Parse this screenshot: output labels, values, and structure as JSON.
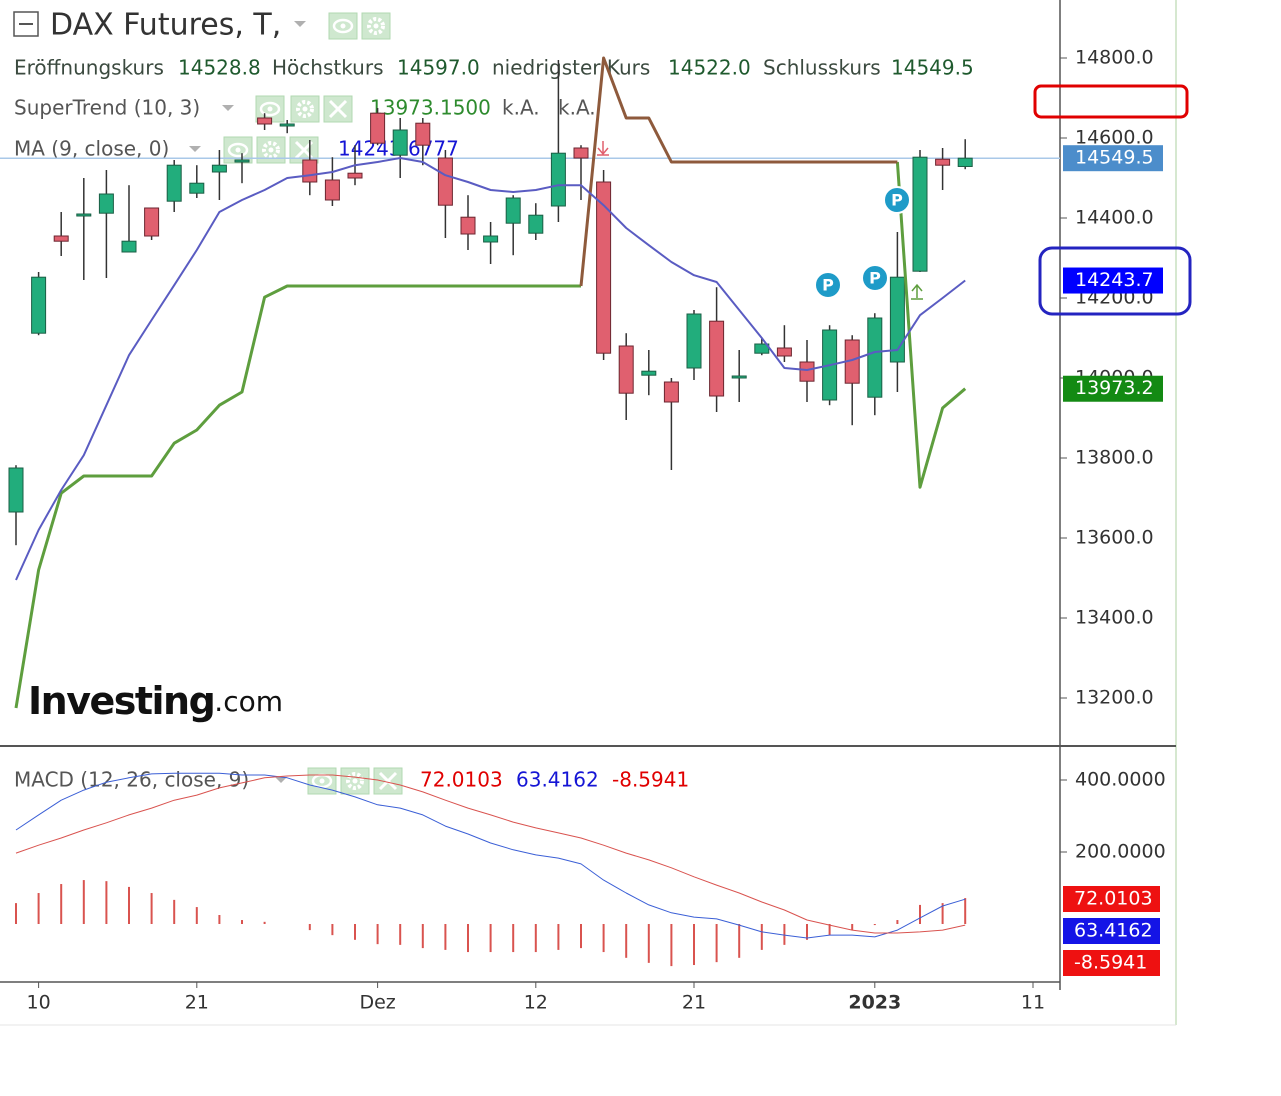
{
  "title": "DAX Futures, T,",
  "ohlc_legend": [
    {
      "label": "Eröffnungskurs",
      "value": "14528.8"
    },
    {
      "label": "Höchstkurs",
      "value": "14597.0"
    },
    {
      "label": "niedrigster Kurs",
      "value": "14522.0"
    },
    {
      "label": "Schlusskurs",
      "value": "14549.5"
    }
  ],
  "watermark": {
    "brand": "Investing",
    "suffix": ".com"
  },
  "chart_data": [
    {
      "type": "candlestick",
      "categories": [
        null,
        "10",
        null,
        null,
        null,
        null,
        null,
        null,
        "21",
        null,
        null,
        null,
        null,
        null,
        null,
        null,
        "Dez",
        null,
        null,
        null,
        null,
        null,
        null,
        "12",
        null,
        null,
        null,
        null,
        null,
        null,
        "21",
        null,
        null,
        null,
        null,
        null,
        null,
        null,
        "2023",
        null,
        null,
        null,
        null,
        null,
        null,
        "11"
      ],
      "open": [
        13665,
        14112,
        14355,
        14405,
        14412,
        14315,
        14425,
        14442,
        14462,
        14515,
        14540,
        14650,
        14630,
        14545,
        14495,
        14512,
        14662,
        14557,
        14637,
        14550,
        14402,
        14340,
        14387,
        14362,
        14430,
        14575,
        14490,
        14080,
        14007,
        13990,
        14025,
        14142,
        14000,
        14062,
        14075,
        14040,
        13945,
        14095,
        13952,
        14040,
        14267,
        14547,
        14528.8,
        null,
        null,
        null
      ],
      "high": [
        13782,
        14265,
        14415,
        14500,
        14520,
        14482,
        14425,
        14545,
        14532,
        14570,
        14562,
        14662,
        14645,
        14595,
        14552,
        14582,
        14675,
        14650,
        14650,
        14570,
        14457,
        14390,
        14457,
        14437,
        14795,
        14582,
        14520,
        14112,
        14070,
        14000,
        14170,
        14227,
        14070,
        14100,
        14132,
        14095,
        14132,
        14107,
        14162,
        14365,
        14570,
        14575,
        14597,
        null,
        null,
        null
      ],
      "low": [
        13582,
        14107,
        14305,
        14245,
        14250,
        14315,
        14345,
        14415,
        14450,
        14445,
        14487,
        14620,
        14612,
        14457,
        14430,
        14482,
        14582,
        14500,
        14532,
        14350,
        14320,
        14285,
        14307,
        14345,
        14390,
        14445,
        14045,
        13895,
        13957,
        13770,
        13995,
        13915,
        13940,
        14057,
        14040,
        13940,
        13932,
        13882,
        13907,
        13965,
        14265,
        14470,
        14522,
        null,
        null,
        null
      ],
      "close": [
        13775,
        14252,
        14342,
        14410,
        14460,
        14342,
        14355,
        14532,
        14487,
        14532,
        14545,
        14635,
        14635,
        14490,
        14445,
        14500,
        14587,
        14620,
        14582,
        14432,
        14360,
        14355,
        14450,
        14407,
        14562,
        14550,
        14062,
        13962,
        14017,
        13940,
        14160,
        13955,
        14005,
        14085,
        14055,
        13992,
        14120,
        13987,
        14150,
        14252,
        14552,
        14532,
        14549.5,
        null,
        null,
        null
      ],
      "up_color": "#22ad7c",
      "down_color": "#e0606f",
      "ylim": [
        13082.5,
        14945
      ],
      "yticks": [
        {
          "value": 13200,
          "label": "13200.0"
        },
        {
          "value": 13400,
          "label": "13400.0"
        },
        {
          "value": 13600,
          "label": "13600.0"
        },
        {
          "value": 13800,
          "label": "13800.0"
        },
        {
          "value": 14000,
          "label": "14000.0"
        },
        {
          "value": 14200,
          "label": "14200.0"
        },
        {
          "value": 14400,
          "label": "14400.0"
        },
        {
          "value": 14600,
          "label": "14600.0"
        },
        {
          "value": 14800,
          "label": "14800.0"
        }
      ],
      "last_price_line": true,
      "indicators": [
        {
          "label": "SuperTrend (10, 3)",
          "value_labels": [
            "13973.1500",
            "k.A.",
            "k.A."
          ],
          "value_colors": [
            "#2e8b2e",
            "#555555",
            "#555555"
          ],
          "series": [
            {
              "color": "#5e9e3e",
              "values": [
                13175,
                13520,
                13712,
                13755,
                13755,
                13755,
                13755,
                13837,
                13870,
                13932,
                13965,
                14202,
                14230,
                14230,
                14230,
                14230,
                14230,
                14230,
                14230,
                14230,
                14230,
                14230,
                14230,
                14230,
                14230,
                14230,
                null,
                null,
                null,
                null,
                null,
                null,
                null,
                null,
                null,
                null,
                null,
                null,
                null,
                14540,
                13727,
                13925,
                13973.15,
                null,
                null,
                null
              ]
            },
            {
              "color": "#8e5a3c",
              "values": [
                null,
                null,
                null,
                null,
                null,
                null,
                null,
                null,
                null,
                null,
                null,
                null,
                null,
                null,
                null,
                null,
                null,
                null,
                null,
                null,
                null,
                null,
                null,
                null,
                null,
                14230,
                14800,
                14650,
                14650,
                14540,
                14540,
                14540,
                14540,
                14540,
                14540,
                14540,
                14540,
                14540,
                14540,
                14540,
                null,
                null,
                null,
                null,
                null,
                null
              ]
            }
          ]
        },
        {
          "label": "MA (9, close, 0)",
          "value_labels": [
            "14243.6777"
          ],
          "value_colors": [
            "#1515d5"
          ],
          "series": [
            {
              "color": "#5a5cc2",
              "values": [
                13495,
                13620,
                13720,
                13807,
                13932,
                14057,
                14145,
                14232,
                14320,
                14415,
                14445,
                14470,
                14500,
                14507,
                14515,
                14532,
                14540,
                14550,
                14540,
                14507,
                14490,
                14470,
                14465,
                14470,
                14482,
                14482,
                14432,
                14375,
                14332,
                14290,
                14257,
                14240,
                14170,
                14100,
                14025,
                14020,
                14032,
                14045,
                14065,
                14070,
                14157,
                14200,
                14243.6777,
                null,
                null,
                null
              ]
            }
          ]
        }
      ],
      "markers": [
        {
          "label": "P"
        },
        {
          "label": "P"
        },
        {
          "label": "P"
        }
      ],
      "price_badges": [
        {
          "value": 14549.5,
          "label": "14549.5",
          "color": "#4c8dcb"
        },
        {
          "value": 14243.6777,
          "label": "14243.7",
          "color": "#0000ff"
        },
        {
          "value": 13973.15,
          "label": "13973.2",
          "color": "#138a13"
        }
      ]
    },
    {
      "type": "macd",
      "label": "MACD (12, 26, close, 9)",
      "value_labels": [
        "72.0103",
        "63.4162",
        "-8.5941"
      ],
      "value_colors": [
        "#e00000",
        "#1515d5",
        "#e00000"
      ],
      "ylim": [
        -155.6,
        488.9
      ],
      "yticks": [
        {
          "value": 200,
          "label": "200.0000"
        },
        {
          "value": 400,
          "label": "400.0000"
        }
      ],
      "histogram": {
        "color": "#d9534f",
        "values": [
          58,
          86,
          111,
          122,
          119,
          103,
          86,
          67,
          47,
          25,
          11,
          6,
          0,
          -17,
          -31,
          -44,
          -56,
          -58,
          -67,
          -72,
          -78,
          -78,
          -78,
          -78,
          -72,
          -67,
          -78,
          -94,
          -108,
          -117,
          -114,
          -106,
          -94,
          -72,
          -58,
          -44,
          -31,
          -17,
          -3,
          11,
          53,
          58,
          72,
          null,
          null,
          null
        ]
      },
      "lines": [
        {
          "color": "#3b5fd6",
          "values": [
            261,
            303,
            344,
            372,
            394,
            406,
            417,
            419,
            419,
            419,
            414,
            414,
            406,
            386,
            372,
            353,
            331,
            322,
            303,
            272,
            250,
            225,
            206,
            192,
            183,
            167,
            122,
            86,
            53,
            31,
            19,
            14,
            -3,
            -22,
            -31,
            -39,
            -31,
            -31,
            -36,
            -17,
            17,
            50,
            69,
            null,
            null,
            null
          ]
        },
        {
          "color": "#d9534f",
          "values": [
            197,
            219,
            239,
            261,
            281,
            303,
            322,
            344,
            358,
            378,
            392,
            406,
            411,
            414,
            414,
            408,
            400,
            386,
            367,
            344,
            322,
            303,
            283,
            267,
            253,
            239,
            219,
            197,
            178,
            156,
            131,
            108,
            86,
            61,
            39,
            11,
            -3,
            -17,
            -25,
            -25,
            -22,
            -17,
            -3,
            null,
            null,
            null
          ]
        }
      ]
    }
  ]
}
